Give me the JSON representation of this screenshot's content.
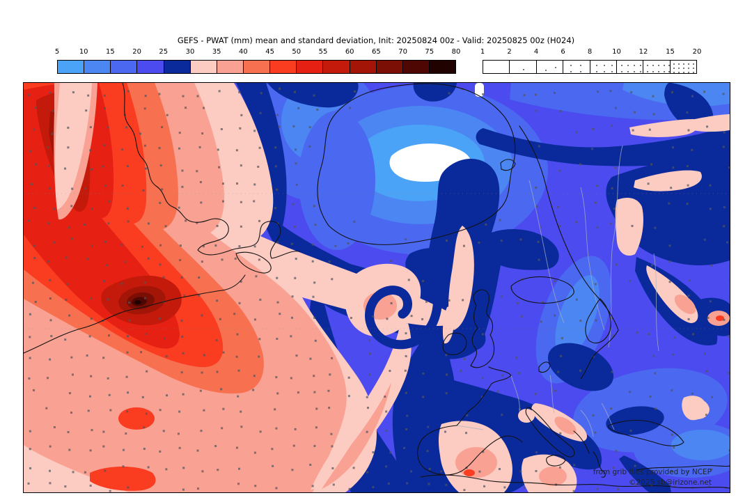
{
  "title": "GEFS - PWAT (mm) mean and standard deviation, Init: 20250824 00z - Valid: 20250825 00z (H024)",
  "colorbar": {
    "units": "mm",
    "tick_labels": [
      "5",
      "10",
      "15",
      "20",
      "25",
      "30",
      "35",
      "40",
      "45",
      "50",
      "55",
      "60",
      "65",
      "70",
      "75",
      "80"
    ],
    "cell_colors": [
      "#4aa3f7",
      "#4b86f3",
      "#4b68f0",
      "#4b4bef",
      "#0a2a9b",
      "#fccbc2",
      "#f9a192",
      "#f7704f",
      "#fa3c21",
      "#e62114",
      "#c41a0b",
      "#a31507",
      "#7c0f05",
      "#4e0703",
      "#200301"
    ]
  },
  "stipple_bar": {
    "tick_labels": [
      "1",
      "2",
      "4",
      "6",
      "8",
      "10",
      "12",
      "15",
      "20"
    ],
    "dot_counts": [
      0,
      1,
      2,
      4,
      6,
      8,
      10,
      15
    ],
    "dot_color": "#787878"
  },
  "map": {
    "attribution_line1": "from grib files provided by NCEP",
    "attribution_line2": "©2025 sb@irizone.net"
  },
  "palette": {
    "b5": "#4aa3f7",
    "b10": "#4b86f3",
    "b15": "#4b68f0",
    "b20": "#4b4bef",
    "n25": "#0a2a9b",
    "p30": "#fccbc2",
    "s35": "#f9a192",
    "r40": "#f7704f",
    "r45": "#fa3c21",
    "r50": "#e62114",
    "r55": "#c41a0b",
    "r60": "#a31507",
    "r65": "#7c0f05",
    "r70": "#4e0703",
    "r75": "#200301",
    "dot": "#787878",
    "map_dot": "#52545c",
    "coast": "#121212",
    "white": "#ffffff"
  }
}
